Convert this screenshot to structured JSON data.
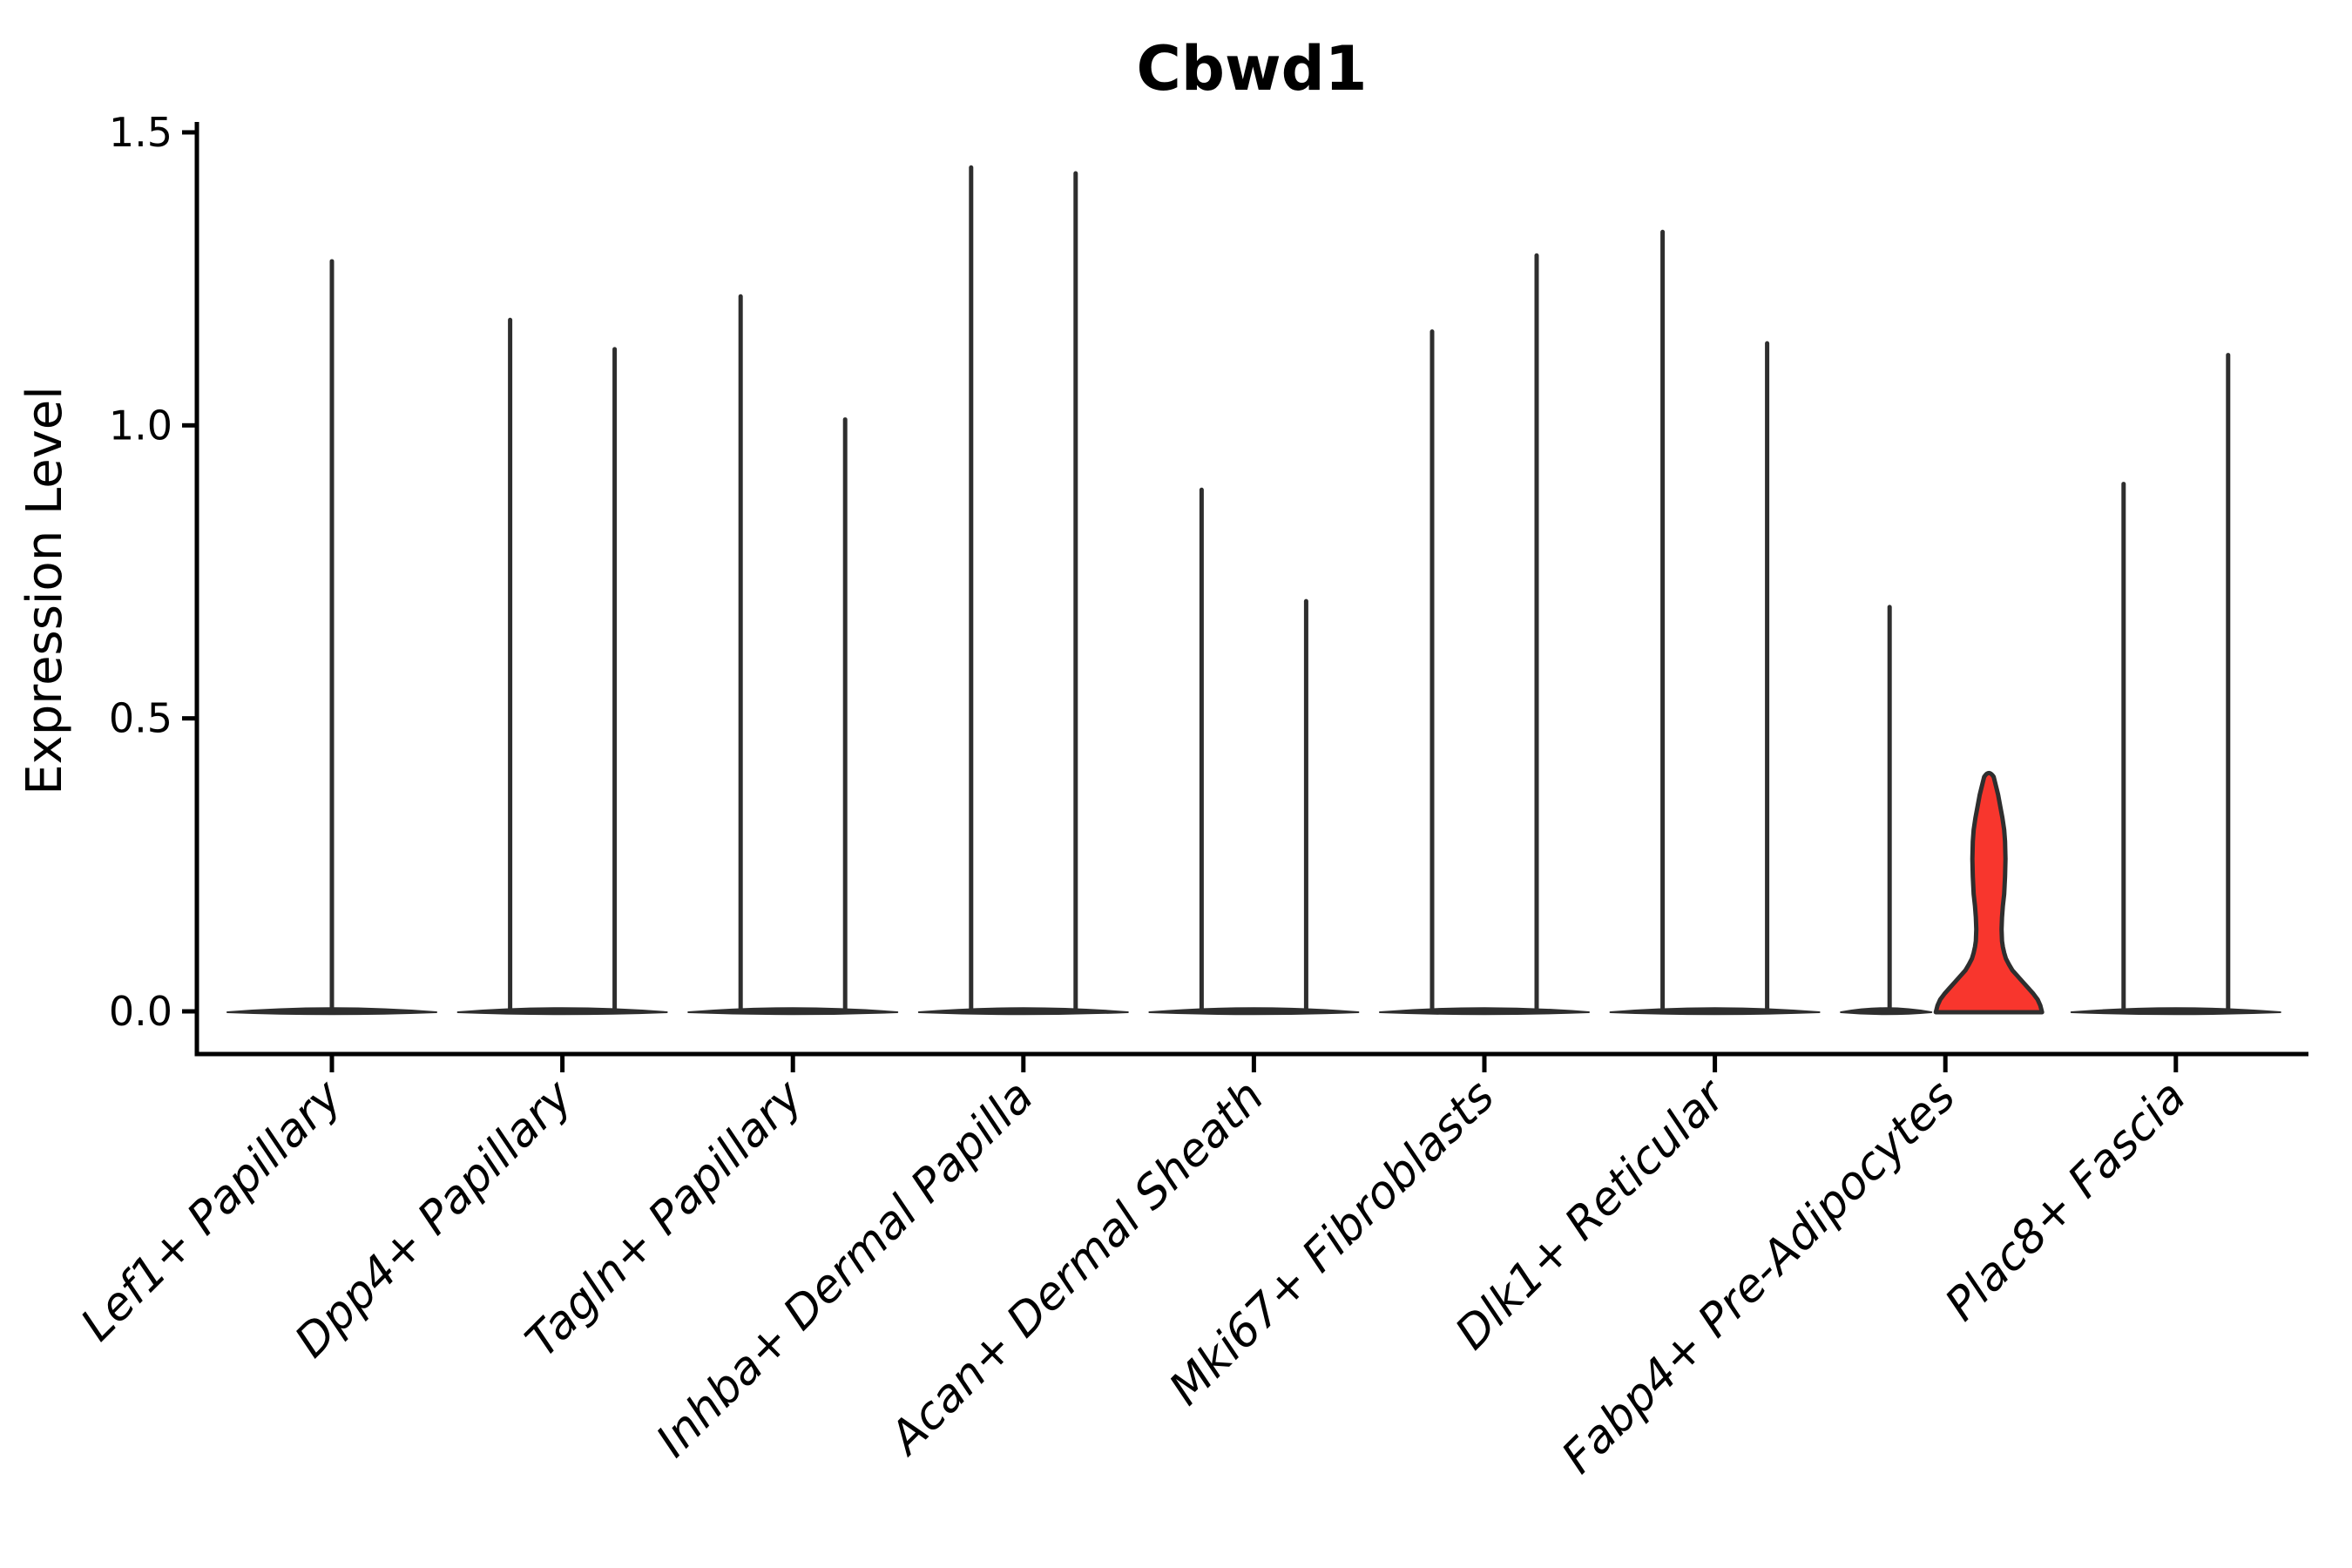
{
  "title": "Cbwd1",
  "y_axis": {
    "label": "Expression Level",
    "ticks": [
      {
        "label": "1.5",
        "value": 1.5
      },
      {
        "label": "1.0",
        "value": 1.0
      },
      {
        "label": "0.5",
        "value": 0.5
      },
      {
        "label": "0.0",
        "value": 0.0
      }
    ]
  },
  "chart_data": {
    "type": "violin",
    "title": "Cbwd1",
    "xlabel": "",
    "ylabel": "Expression Level",
    "ylim": [
      0,
      1.5
    ],
    "ytick_values": [
      0.0,
      0.5,
      1.0,
      1.5
    ],
    "grid": false,
    "legend_position": "none",
    "categories": [
      "Lef1+ Papillary",
      "Dpp4+ Papillary",
      "Tagln+ Papillary",
      "Inhba+ Dermal Papilla",
      "Acan+ Dermal Sheath",
      "Mki67+ Fibroblasts",
      "Dlk1+ Reticular",
      "Fabp4+ Pre-Adipocytes",
      "Plac8+ Fascia"
    ],
    "description": "Violin plot of Cbwd1 expression; nearly all cells at 0 giving flat wide bases with thin max-value spikes; Fabp4+ Pre-Adipocytes shows one red highlighted violin reaching 0.40.",
    "violins": [
      {
        "category": "Lef1+ Papillary",
        "base_span": [
          -120,
          120
        ],
        "spikes": [
          {
            "dx": 0,
            "max": 1.28
          }
        ]
      },
      {
        "category": "Dpp4+ Papillary",
        "base_span": [
          -120,
          120
        ],
        "spikes": [
          {
            "dx": -60,
            "max": 1.18
          },
          {
            "dx": 60,
            "max": 1.13
          }
        ]
      },
      {
        "category": "Tagln+ Papillary",
        "base_span": [
          -120,
          120
        ],
        "spikes": [
          {
            "dx": -60,
            "max": 1.22
          },
          {
            "dx": 60,
            "max": 1.01
          }
        ]
      },
      {
        "category": "Inhba+ Dermal Papilla",
        "base_span": [
          -120,
          120
        ],
        "spikes": [
          {
            "dx": -60,
            "max": 1.44
          },
          {
            "dx": 60,
            "max": 1.43
          }
        ]
      },
      {
        "category": "Acan+ Dermal Sheath",
        "base_span": [
          -120,
          120
        ],
        "spikes": [
          {
            "dx": -60,
            "max": 0.89
          },
          {
            "dx": 60,
            "max": 0.7
          }
        ]
      },
      {
        "category": "Mki67+ Fibroblasts",
        "base_span": [
          -120,
          120
        ],
        "spikes": [
          {
            "dx": -60,
            "max": 1.16
          },
          {
            "dx": 60,
            "max": 1.29
          }
        ]
      },
      {
        "category": "Dlk1+ Reticular",
        "base_span": [
          -120,
          120
        ],
        "spikes": [
          {
            "dx": -60,
            "max": 1.33
          },
          {
            "dx": 60,
            "max": 1.14
          }
        ]
      },
      {
        "category": "Fabp4+ Pre-Adipocytes",
        "base_span": [
          -120,
          -16
        ],
        "spikes": [
          {
            "dx": -64,
            "max": 0.69
          }
        ],
        "highlight_violin": {
          "dx": 50,
          "max": 0.4,
          "fill": "#f8362d",
          "profile": [
            [
              0.0,
              61
            ],
            [
              0.01,
              59
            ],
            [
              0.02,
              56
            ],
            [
              0.03,
              51
            ],
            [
              0.04,
              45
            ],
            [
              0.05,
              39
            ],
            [
              0.06,
              33
            ],
            [
              0.07,
              27
            ],
            [
              0.08,
              23
            ],
            [
              0.09,
              19.5
            ],
            [
              0.1,
              17.5
            ],
            [
              0.11,
              16
            ],
            [
              0.12,
              15
            ],
            [
              0.14,
              14.5
            ],
            [
              0.16,
              15
            ],
            [
              0.18,
              16
            ],
            [
              0.2,
              17.5
            ],
            [
              0.23,
              18.5
            ],
            [
              0.26,
              19
            ],
            [
              0.29,
              18.5
            ],
            [
              0.31,
              17.5
            ],
            [
              0.33,
              15.5
            ],
            [
              0.35,
              13
            ],
            [
              0.37,
              10.5
            ],
            [
              0.385,
              8
            ],
            [
              0.4,
              5.5
            ]
          ]
        }
      },
      {
        "category": "Plac8+ Fascia",
        "base_span": [
          -120,
          120
        ],
        "spikes": [
          {
            "dx": -60,
            "max": 0.9
          },
          {
            "dx": 60,
            "max": 1.12
          }
        ]
      }
    ],
    "colors": {
      "violin_stroke": "#2e2e2e",
      "highlight_fill": "#f8362d",
      "axis": "#000000",
      "background": "#ffffff",
      "text": "#000000"
    }
  }
}
